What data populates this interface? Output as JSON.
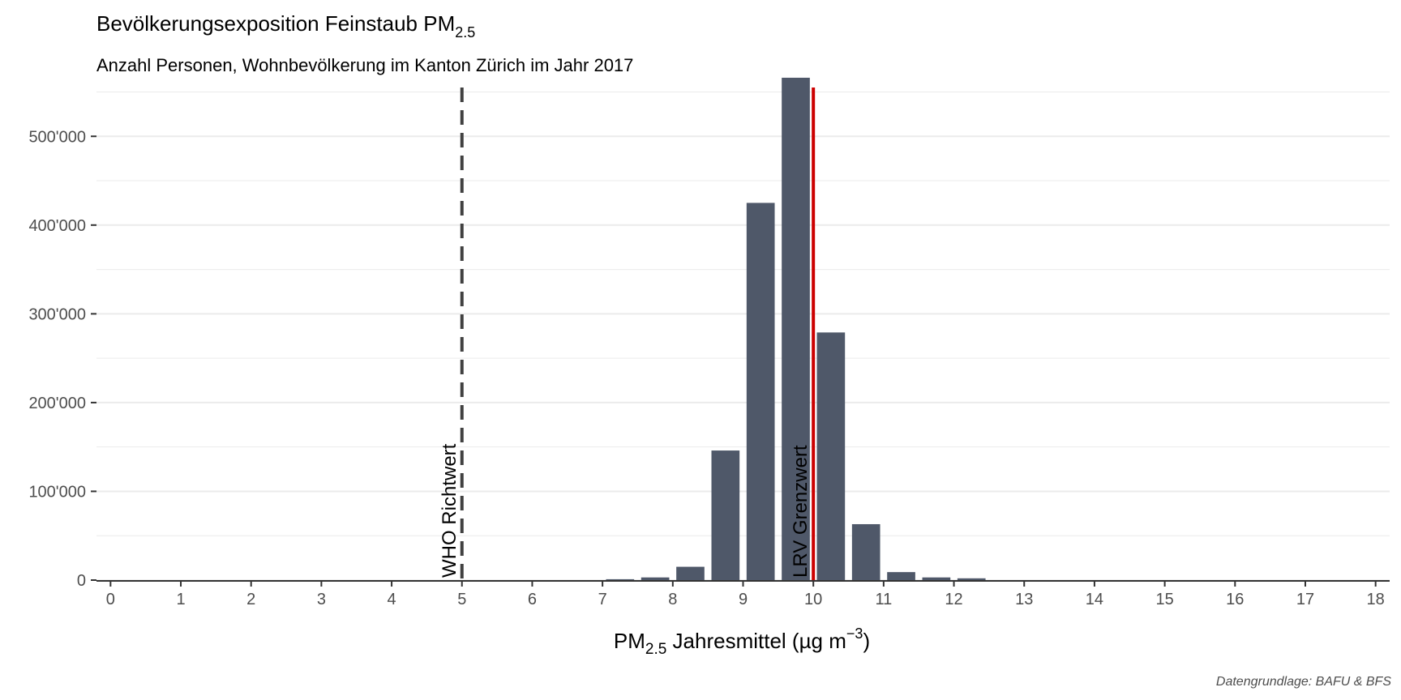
{
  "chart_data": {
    "type": "bar",
    "title": {
      "main": "Bevölkerungsexposition Feinstaub PM",
      "sub": "2.5"
    },
    "subtitle": "Anzahl Personen, Wohnbevölkerung im Kanton Zürich im Jahr 2017",
    "xlabel": {
      "pre": "PM",
      "sub": "2.5",
      "mid": " Jahresmittel (µg m",
      "sup": "−3",
      "post": ")"
    },
    "caption": "Datengrundlage: BAFU & BFS",
    "xlim": [
      -0.2,
      18.2
    ],
    "ylim": [
      0,
      555000
    ],
    "x_ticks": [
      0,
      1,
      2,
      3,
      4,
      5,
      6,
      7,
      8,
      9,
      10,
      11,
      12,
      13,
      14,
      15,
      16,
      17,
      18
    ],
    "x_tick_labels": [
      "0",
      "1",
      "2",
      "3",
      "4",
      "5",
      "6",
      "7",
      "8",
      "9",
      "10",
      "11",
      "12",
      "13",
      "14",
      "15",
      "16",
      "17",
      "18"
    ],
    "y_ticks": [
      0,
      100000,
      200000,
      300000,
      400000,
      500000
    ],
    "y_tick_labels": [
      "0",
      "100'000",
      "200'000",
      "300'000",
      "400'000",
      "500'000"
    ],
    "bin_width": 0.5,
    "bars": [
      {
        "x": 7.25,
        "value": 1000
      },
      {
        "x": 7.75,
        "value": 3000
      },
      {
        "x": 8.25,
        "value": 15000
      },
      {
        "x": 8.75,
        "value": 146000
      },
      {
        "x": 9.25,
        "value": 425000
      },
      {
        "x": 9.75,
        "value": 566000
      },
      {
        "x": 10.25,
        "value": 279000
      },
      {
        "x": 10.75,
        "value": 63000
      },
      {
        "x": 11.25,
        "value": 9000
      },
      {
        "x": 11.75,
        "value": 3000
      },
      {
        "x": 12.25,
        "value": 2000
      }
    ],
    "reference_lines": [
      {
        "x": 5,
        "label": "WHO Richtwert",
        "style": "dashed",
        "color": "#404040"
      },
      {
        "x": 10,
        "label": "LRV Grenzwert",
        "style": "solid",
        "color": "#cc0000"
      }
    ],
    "bar_color": "#4f5869",
    "grid": true,
    "legend": "none"
  }
}
